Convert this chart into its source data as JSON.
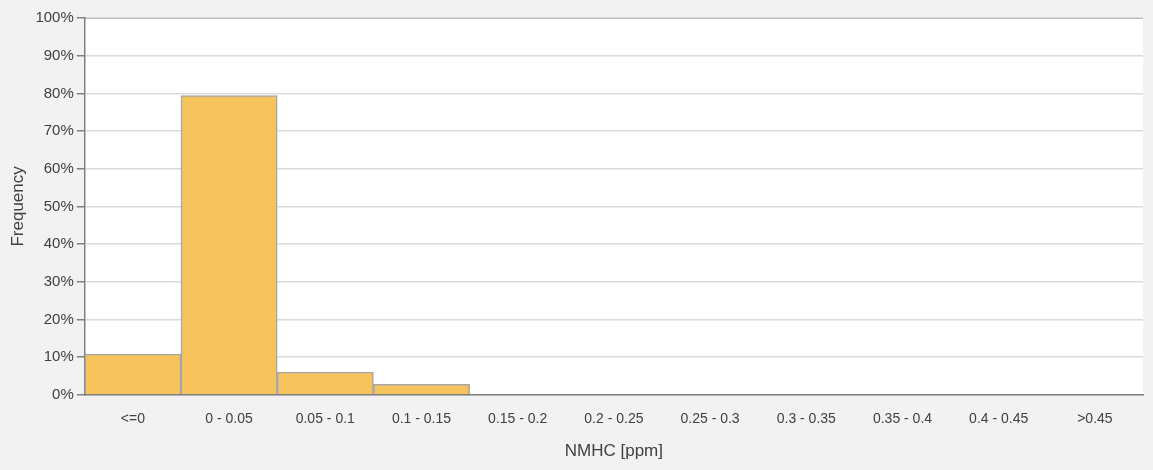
{
  "chart_data": {
    "type": "bar",
    "xlabel": "NMHC [ppm]",
    "ylabel": "Frequency",
    "categories": [
      "<=0",
      "0 - 0.05",
      "0.05 - 0.1",
      "0.1 - 0.15",
      "0.15 - 0.2",
      "0.2 - 0.25",
      "0.25 - 0.3",
      "0.3 - 0.35",
      "0.35 - 0.4",
      "0.4 - 0.45",
      ">0.45"
    ],
    "values": [
      10.8,
      79.4,
      6.0,
      2.8,
      0,
      0,
      0,
      0,
      0,
      0,
      0
    ],
    "color": "#f6c35c",
    "ylim": [
      0,
      100
    ],
    "yticks": [
      {
        "value": 0,
        "label": "0%"
      },
      {
        "value": 10,
        "label": "10%"
      },
      {
        "value": 20,
        "label": "20%"
      },
      {
        "value": 30,
        "label": "30%"
      },
      {
        "value": 40,
        "label": "40%"
      },
      {
        "value": 50,
        "label": "50%"
      },
      {
        "value": 60,
        "label": "60%"
      },
      {
        "value": 70,
        "label": "70%"
      },
      {
        "value": 80,
        "label": "80%"
      },
      {
        "value": 90,
        "label": "90%"
      },
      {
        "value": 100,
        "label": "100%"
      }
    ],
    "grid": "y",
    "legend": false
  }
}
